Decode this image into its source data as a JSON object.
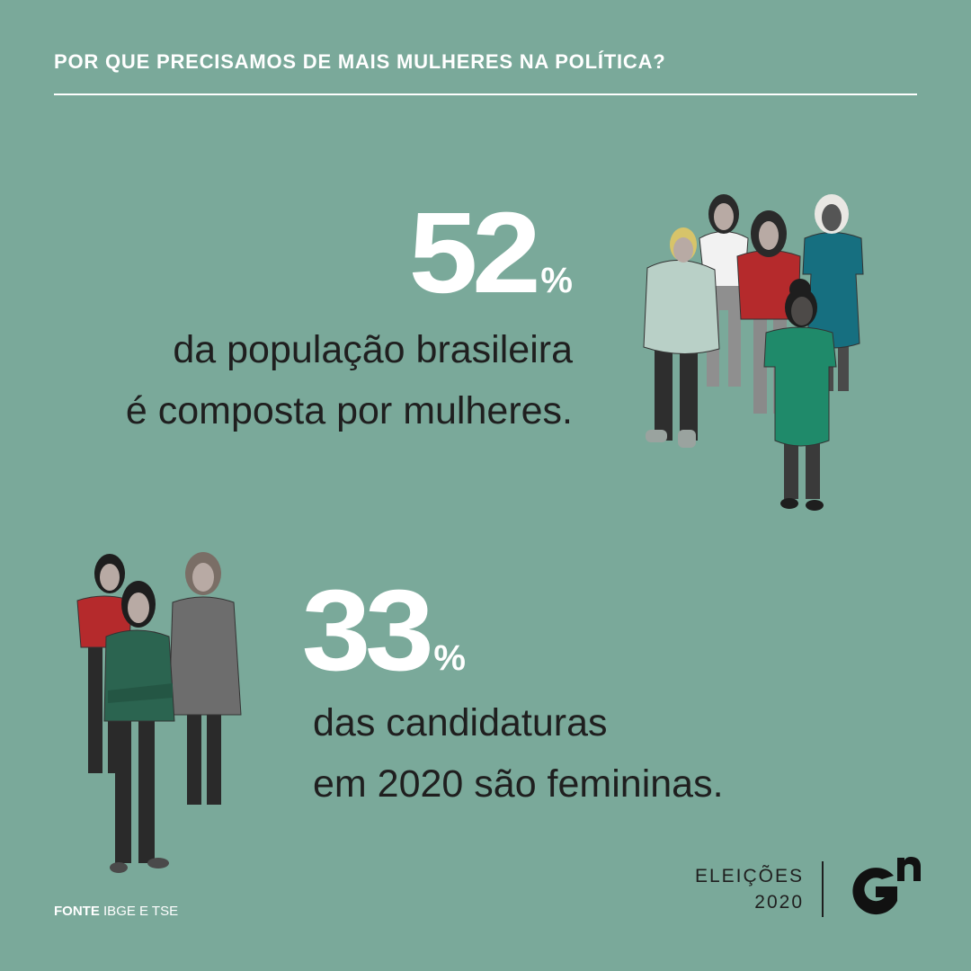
{
  "header": {
    "title": "POR QUE PRECISAMOS DE MAIS MULHERES NA POLÍTICA?"
  },
  "stats": [
    {
      "number": "52",
      "percent": "%",
      "lines": [
        "da população brasileira",
        "é composta por mulheres."
      ]
    },
    {
      "number": "33",
      "percent": "%",
      "lines": [
        "das candidaturas",
        "em 2020 são femininas."
      ]
    }
  ],
  "source": {
    "label": "FONTE",
    "text": "IBGE E TSE"
  },
  "brand": {
    "edition_line1": "ELEIÇÕES",
    "edition_line2": "2020",
    "logo_alt": "Gn logo"
  },
  "colors": {
    "background": "#7aa99a",
    "heading": "#ffffff",
    "body_text": "#1f1f1f",
    "red": "#b52a2c",
    "teal": "#166f80",
    "green": "#1f8a6a",
    "dark_green": "#2b6450",
    "gray_coat": "#6d6d6d"
  },
  "icons": [
    "women-group-illustration",
    "women-trio-illustration",
    "gn-logo"
  ]
}
